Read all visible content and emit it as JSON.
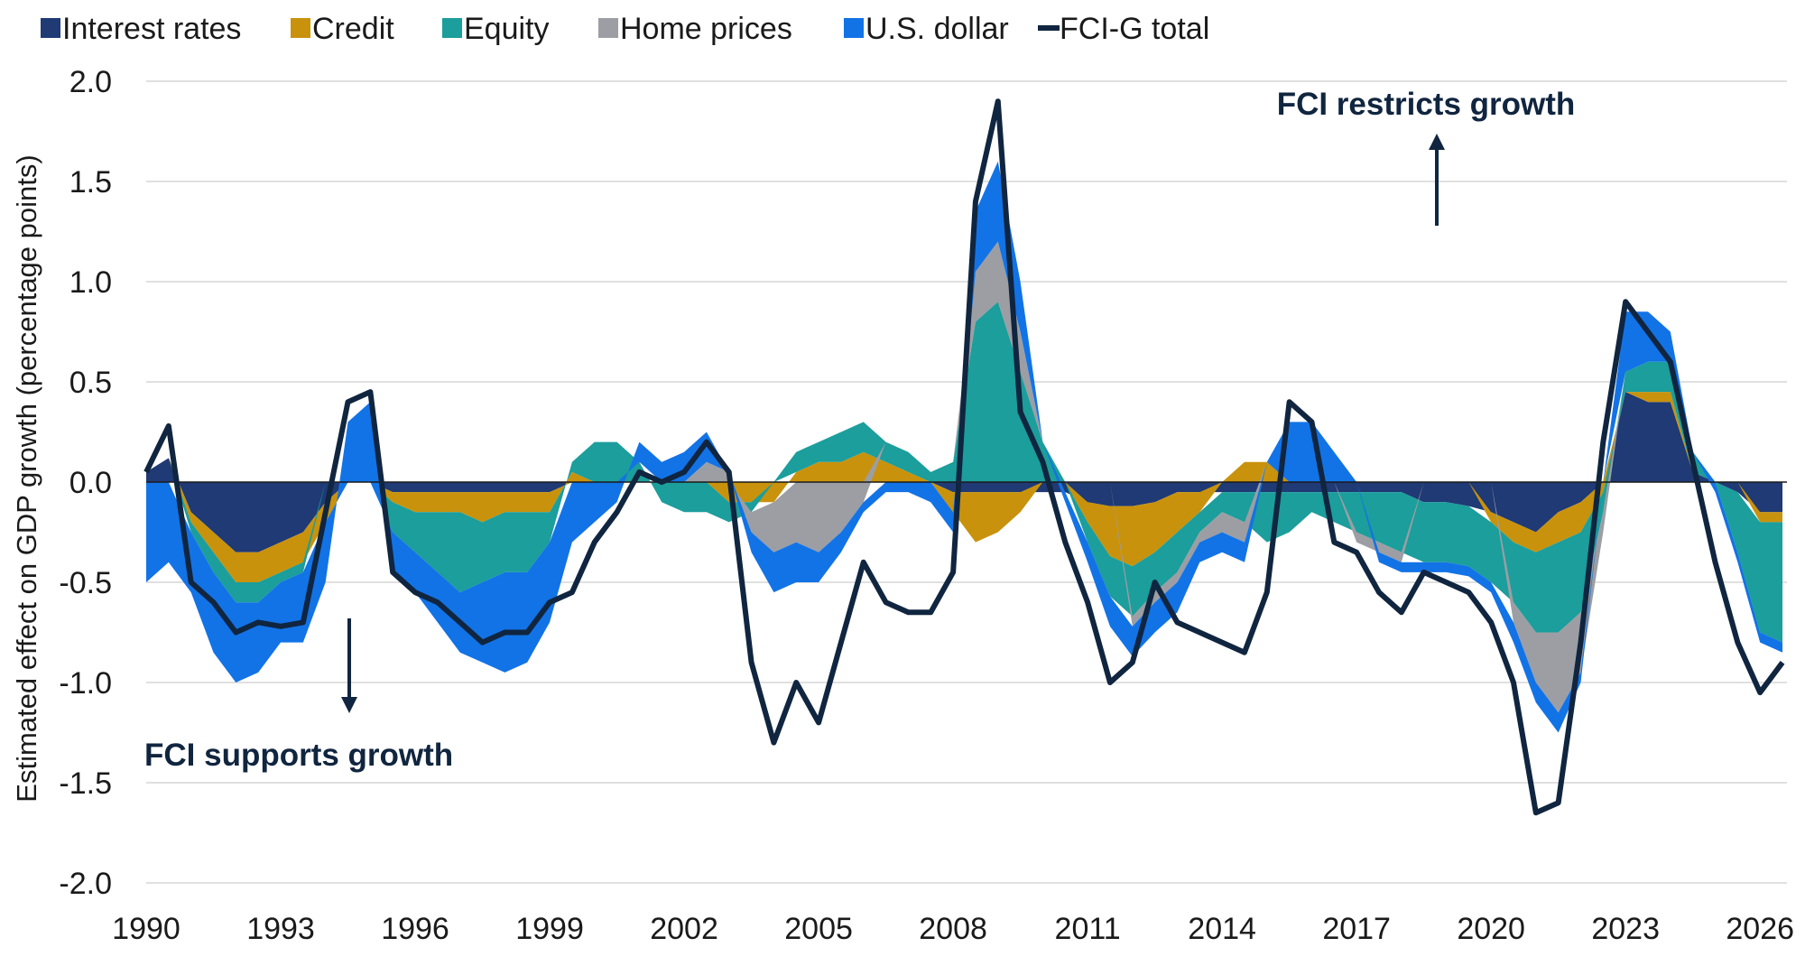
{
  "chart_data": {
    "type": "area",
    "ylabel": "Estimated effect on GDP growth (percentage points)",
    "xlabel": "",
    "xlim": [
      1990,
      2026.6
    ],
    "ylim": [
      -2.0,
      2.0
    ],
    "x_ticks": [
      1990,
      1993,
      1996,
      1999,
      2002,
      2005,
      2008,
      2011,
      2014,
      2017,
      2020,
      2023,
      2026
    ],
    "x_tick_labels": [
      "1990",
      "1993",
      "1996",
      "1999",
      "2002",
      "2005",
      "2008",
      "2011",
      "2014",
      "2017",
      "2020",
      "2023",
      "2026"
    ],
    "y_ticks": [
      2.0,
      1.5,
      1.0,
      0.5,
      0.0,
      -0.5,
      -1.0,
      -1.5,
      -2.0
    ],
    "y_tick_labels": [
      "2.0",
      "1.5",
      "1.0",
      "0.5",
      "0.0",
      "-0.5",
      "-1.0",
      "-1.5",
      "-2.0"
    ],
    "grid": "horizontal",
    "legend_position": "top",
    "x": [
      1990.0,
      1990.5,
      1991.0,
      1991.5,
      1992.0,
      1992.5,
      1993.0,
      1993.5,
      1994.0,
      1994.5,
      1995.0,
      1995.5,
      1996.0,
      1996.5,
      1997.0,
      1997.5,
      1998.0,
      1998.5,
      1999.0,
      1999.5,
      2000.0,
      2000.5,
      2001.0,
      2001.5,
      2002.0,
      2002.5,
      2003.0,
      2003.5,
      2004.0,
      2004.5,
      2005.0,
      2005.5,
      2006.0,
      2006.5,
      2007.0,
      2007.5,
      2008.0,
      2008.5,
      2009.0,
      2009.5,
      2010.0,
      2010.5,
      2011.0,
      2011.5,
      2012.0,
      2012.5,
      2013.0,
      2013.5,
      2014.0,
      2014.5,
      2015.0,
      2015.5,
      2016.0,
      2016.5,
      2017.0,
      2017.5,
      2018.0,
      2018.5,
      2019.0,
      2019.5,
      2020.0,
      2020.5,
      2021.0,
      2021.5,
      2022.0,
      2022.5,
      2023.0,
      2023.5,
      2024.0,
      2024.5,
      2025.0,
      2025.5,
      2026.0,
      2026.5
    ],
    "series": [
      {
        "name": "Interest rates",
        "color": "#1f3a75",
        "values": [
          0.05,
          0.12,
          -0.15,
          -0.25,
          -0.35,
          -0.35,
          -0.3,
          -0.25,
          -0.1,
          0.0,
          0.0,
          -0.05,
          -0.05,
          -0.05,
          -0.05,
          -0.05,
          -0.05,
          -0.05,
          -0.05,
          0.0,
          0.0,
          0.0,
          0.0,
          0.0,
          0.0,
          0.0,
          0.0,
          0.0,
          0.0,
          0.0,
          0.0,
          0.0,
          0.0,
          0.0,
          0.0,
          0.0,
          -0.05,
          -0.05,
          -0.05,
          -0.05,
          -0.05,
          -0.05,
          -0.1,
          -0.12,
          -0.12,
          -0.1,
          -0.05,
          -0.05,
          -0.05,
          -0.05,
          -0.05,
          -0.05,
          -0.05,
          -0.05,
          -0.05,
          -0.05,
          -0.05,
          -0.1,
          -0.1,
          -0.12,
          -0.15,
          -0.2,
          -0.25,
          -0.15,
          -0.1,
          0.0,
          0.45,
          0.4,
          0.4,
          0.05,
          0.0,
          -0.05,
          -0.15,
          -0.15
        ]
      },
      {
        "name": "Credit",
        "color": "#c9920c",
        "values": [
          0.0,
          0.0,
          -0.05,
          -0.1,
          -0.15,
          -0.15,
          -0.15,
          -0.15,
          -0.1,
          0.0,
          0.0,
          -0.05,
          -0.1,
          -0.1,
          -0.1,
          -0.15,
          -0.1,
          -0.1,
          -0.1,
          0.05,
          0.0,
          0.0,
          0.0,
          0.0,
          0.0,
          0.0,
          -0.1,
          -0.1,
          -0.1,
          0.05,
          0.1,
          0.1,
          0.15,
          0.1,
          0.05,
          0.0,
          -0.1,
          -0.25,
          -0.2,
          -0.1,
          0.0,
          0.0,
          -0.1,
          -0.25,
          -0.3,
          -0.25,
          -0.2,
          -0.1,
          0.0,
          0.1,
          0.1,
          0.0,
          0.0,
          0.0,
          0.0,
          0.0,
          0.0,
          0.0,
          0.0,
          0.0,
          -0.05,
          -0.1,
          -0.1,
          -0.15,
          -0.15,
          -0.05,
          0.0,
          0.05,
          0.05,
          0.0,
          0.0,
          0.0,
          -0.05,
          -0.05
        ]
      },
      {
        "name": "Equity",
        "color": "#1b9e9c",
        "values": [
          0.0,
          0.0,
          -0.05,
          -0.1,
          -0.1,
          -0.1,
          -0.05,
          -0.05,
          0.0,
          0.0,
          0.0,
          -0.15,
          -0.2,
          -0.3,
          -0.4,
          -0.3,
          -0.3,
          -0.3,
          -0.15,
          0.05,
          0.2,
          0.2,
          0.1,
          -0.1,
          -0.15,
          -0.15,
          -0.1,
          -0.05,
          0.0,
          0.1,
          0.1,
          0.15,
          0.15,
          0.1,
          0.1,
          0.05,
          0.1,
          0.8,
          0.9,
          0.55,
          0.2,
          0.0,
          -0.1,
          -0.2,
          -0.25,
          -0.2,
          -0.2,
          -0.1,
          -0.1,
          -0.15,
          -0.25,
          -0.2,
          -0.1,
          -0.15,
          -0.2,
          -0.25,
          -0.3,
          -0.3,
          -0.3,
          -0.3,
          -0.3,
          -0.3,
          -0.4,
          -0.45,
          -0.4,
          -0.1,
          0.1,
          0.15,
          0.15,
          0.1,
          0.0,
          -0.3,
          -0.55,
          -0.6
        ]
      },
      {
        "name": "Home prices",
        "color": "#9c9ea3",
        "values": [
          0.0,
          0.0,
          0.0,
          0.0,
          0.0,
          0.0,
          0.0,
          0.0,
          0.0,
          0.0,
          0.0,
          0.0,
          0.0,
          0.0,
          0.0,
          0.0,
          0.0,
          0.0,
          0.0,
          0.0,
          0.0,
          0.0,
          0.0,
          0.0,
          0.0,
          0.1,
          0.05,
          -0.1,
          -0.25,
          -0.3,
          -0.35,
          -0.25,
          -0.1,
          0.0,
          0.0,
          0.0,
          0.0,
          0.25,
          0.3,
          0.2,
          0.0,
          0.0,
          0.0,
          0.0,
          -0.05,
          -0.05,
          -0.05,
          -0.05,
          -0.1,
          -0.1,
          0.0,
          0.0,
          0.0,
          0.0,
          -0.05,
          -0.05,
          -0.05,
          0.0,
          0.0,
          0.0,
          0.0,
          -0.1,
          -0.25,
          -0.4,
          -0.3,
          -0.1,
          0.0,
          0.0,
          0.0,
          0.0,
          0.0,
          0.0,
          0.0,
          0.0
        ]
      },
      {
        "name": "U.S. dollar",
        "color": "#1273e6",
        "values": [
          -0.5,
          -0.4,
          -0.3,
          -0.4,
          -0.4,
          -0.35,
          -0.3,
          -0.35,
          -0.3,
          0.3,
          0.4,
          -0.2,
          -0.2,
          -0.25,
          -0.3,
          -0.4,
          -0.5,
          -0.45,
          -0.4,
          -0.3,
          -0.2,
          -0.1,
          0.1,
          0.1,
          0.15,
          0.15,
          0.0,
          -0.1,
          -0.2,
          -0.2,
          -0.15,
          -0.1,
          -0.05,
          -0.05,
          -0.05,
          -0.1,
          -0.1,
          0.3,
          0.4,
          0.25,
          0.0,
          -0.05,
          -0.1,
          -0.15,
          -0.15,
          -0.15,
          -0.15,
          -0.1,
          -0.1,
          -0.1,
          0.0,
          0.3,
          0.3,
          0.15,
          0.0,
          -0.05,
          -0.05,
          -0.05,
          -0.05,
          -0.05,
          -0.05,
          -0.1,
          -0.1,
          -0.1,
          -0.05,
          0.0,
          0.3,
          0.25,
          0.15,
          0.0,
          -0.05,
          -0.05,
          -0.05,
          -0.05
        ]
      },
      {
        "name": "FCI-G total",
        "color": "#10253f",
        "values": [
          0.05,
          0.28,
          -0.5,
          -0.6,
          -0.75,
          -0.7,
          -0.72,
          -0.7,
          -0.15,
          0.4,
          0.45,
          -0.45,
          -0.55,
          -0.6,
          -0.7,
          -0.8,
          -0.75,
          -0.75,
          -0.6,
          -0.55,
          -0.3,
          -0.15,
          0.05,
          0.0,
          0.05,
          0.2,
          0.05,
          -0.9,
          -1.3,
          -1.0,
          -1.2,
          -0.8,
          -0.4,
          -0.6,
          -0.65,
          -0.65,
          -0.45,
          1.4,
          1.9,
          0.35,
          0.1,
          -0.3,
          -0.6,
          -1.0,
          -0.9,
          -0.5,
          -0.7,
          -0.75,
          -0.8,
          -0.85,
          -0.55,
          0.4,
          0.3,
          -0.3,
          -0.35,
          -0.55,
          -0.65,
          -0.45,
          -0.5,
          -0.55,
          -0.7,
          -1.0,
          -1.65,
          -1.6,
          -0.8,
          0.2,
          0.9,
          0.75,
          0.6,
          0.1,
          -0.4,
          -0.8,
          -1.05,
          -0.9
        ]
      }
    ],
    "annotations": [
      "FCI restricts growth",
      "FCI supports growth"
    ]
  }
}
